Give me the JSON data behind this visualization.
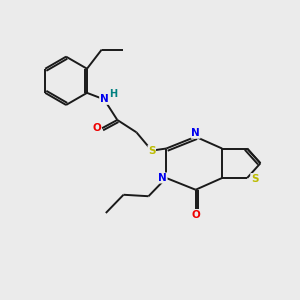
{
  "bg_color": "#ebebeb",
  "bond_color": "#1a1a1a",
  "atom_colors": {
    "N": "#0000ee",
    "O": "#ee0000",
    "S": "#bbbb00",
    "H": "#008080",
    "C": "#1a1a1a"
  },
  "lw": 1.4,
  "fontsize": 7.5
}
